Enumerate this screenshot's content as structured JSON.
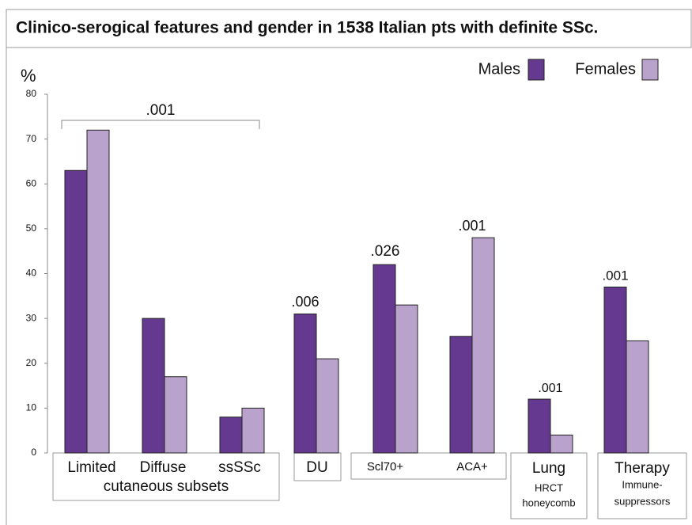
{
  "chart_data": {
    "type": "bar",
    "title": "Clinico-serogical features and gender in 1538 Italian pts with definite SSc.",
    "y_label": "%",
    "categories": [
      "Limited",
      "Diffuse",
      "ssSSc",
      "DU",
      "Scl70+",
      "ACA+",
      "Lung",
      "Therapy"
    ],
    "group_labels": [
      "cutaneous subsets",
      "HRCT",
      "honeycomb",
      "Immune-",
      "suppressors"
    ],
    "series": [
      {
        "name": "Males",
        "color": "#65398f",
        "values": [
          63,
          30,
          8,
          31,
          42,
          26,
          12,
          37
        ]
      },
      {
        "name": "Females",
        "color": "#b9a2cc",
        "values": [
          72,
          17,
          10,
          21,
          33,
          48,
          4,
          25
        ]
      }
    ],
    "annotations": [
      ".001",
      ".006",
      ".026",
      ".001",
      ".001",
      ".001"
    ],
    "ylim": [
      0,
      80
    ],
    "yticks": [
      0,
      10,
      20,
      30,
      40,
      50,
      60,
      70,
      80
    ]
  }
}
